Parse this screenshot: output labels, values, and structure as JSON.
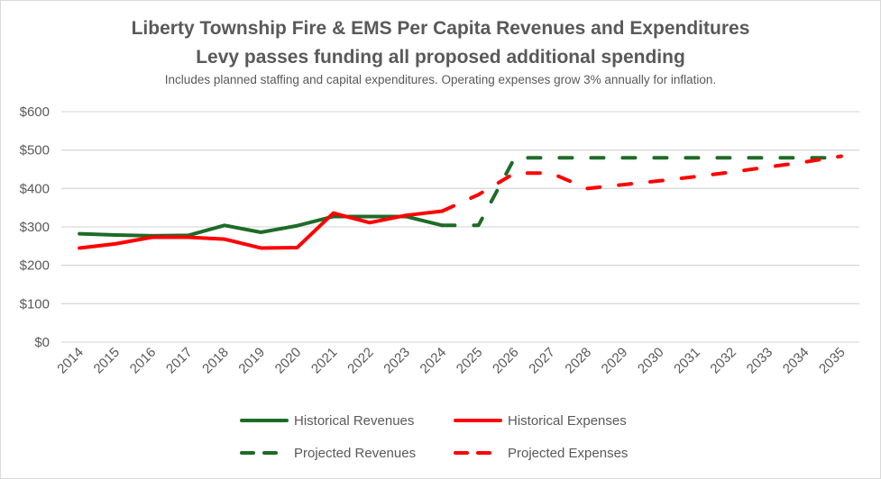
{
  "chart_data": {
    "type": "line",
    "title": "Liberty Township Fire & EMS Per Capita Revenues and Expenditures",
    "subtitle": "Levy passes funding all proposed additional spending",
    "note": "Includes planned staffing and capital expenditures.  Operating expenses grow 3% annually for inflation.",
    "xlabel": "",
    "ylabel": "",
    "ylim": [
      0,
      600
    ],
    "y_ticks": [
      0,
      100,
      200,
      300,
      400,
      500,
      600
    ],
    "y_tick_labels": [
      "$0",
      "$100",
      "$200",
      "$300",
      "$400",
      "$500",
      "$600"
    ],
    "grid": true,
    "legend_position": "bottom",
    "x": [
      "2014",
      "2015",
      "2016",
      "2017",
      "2018",
      "2019",
      "2020",
      "2021",
      "2022",
      "2023",
      "2024",
      "2025",
      "2026",
      "2027",
      "2028",
      "2029",
      "2030",
      "2031",
      "2032",
      "2033",
      "2034",
      "2035"
    ],
    "series": [
      {
        "name": "Historical Revenues",
        "color": "#1e6b27",
        "dash": false,
        "values": [
          282,
          279,
          277,
          278,
          304,
          286,
          303,
          327,
          327,
          327,
          304,
          null,
          null,
          null,
          null,
          null,
          null,
          null,
          null,
          null,
          null,
          null
        ]
      },
      {
        "name": "Historical Expenses",
        "color": "#ff0000",
        "dash": false,
        "values": [
          245,
          256,
          273,
          273,
          268,
          245,
          246,
          336,
          311,
          330,
          341,
          null,
          null,
          null,
          null,
          null,
          null,
          null,
          null,
          null,
          null,
          null
        ]
      },
      {
        "name": "Projected Revenues",
        "color": "#1e6b27",
        "dash": true,
        "values": [
          null,
          null,
          null,
          null,
          null,
          null,
          null,
          null,
          null,
          null,
          304,
          304,
          480,
          480,
          480,
          480,
          480,
          480,
          480,
          480,
          480,
          480
        ]
      },
      {
        "name": "Projected Expenses",
        "color": "#ff0000",
        "dash": true,
        "values": [
          null,
          null,
          null,
          null,
          null,
          null,
          null,
          null,
          null,
          null,
          341,
          384,
          440,
          440,
          400,
          410,
          420,
          431,
          443,
          456,
          469,
          484
        ]
      }
    ]
  }
}
